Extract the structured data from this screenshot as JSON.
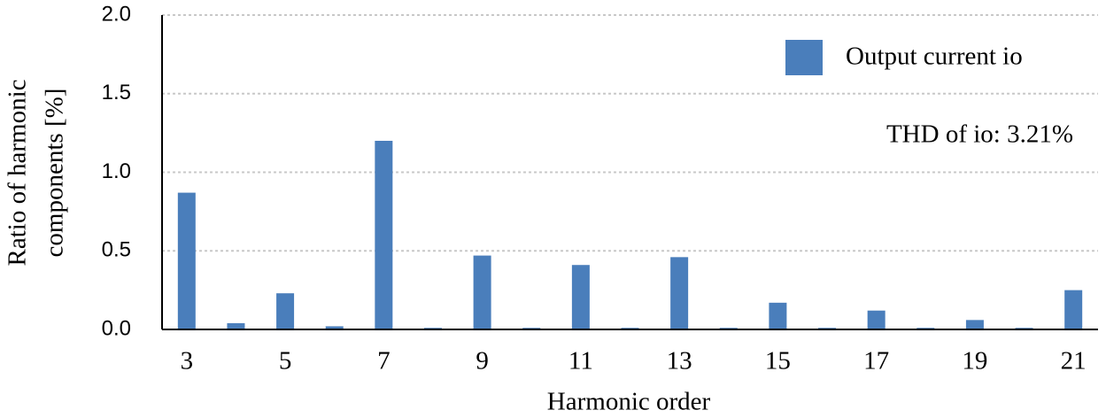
{
  "chart_data": {
    "type": "bar",
    "xlabel": "Harmonic order",
    "ylabel": [
      "Ratio of harmonic",
      "components [%]"
    ],
    "categories": [
      "3",
      null,
      "5",
      null,
      "7",
      null,
      "9",
      null,
      "11",
      null,
      "13",
      null,
      "15",
      null,
      "17",
      null,
      "19",
      null,
      "21"
    ],
    "series": [
      {
        "name": "Output current io",
        "color": "#4a7ebb",
        "values": [
          0.87,
          0.04,
          0.23,
          0.02,
          1.2,
          0.01,
          0.47,
          0.01,
          0.41,
          0.01,
          0.46,
          0.01,
          0.17,
          0.01,
          0.12,
          0.01,
          0.06,
          0.01,
          0.25
        ]
      }
    ],
    "annotation": "THD of io: 3.21%",
    "ylim": [
      0,
      2
    ],
    "yticks": [
      {
        "value": 0,
        "label": "0.0"
      },
      {
        "value": 0.5,
        "label": "0.5"
      },
      {
        "value": 1,
        "label": "1.0"
      },
      {
        "value": 1.5,
        "label": "1.5"
      },
      {
        "value": 2,
        "label": "2.0"
      }
    ],
    "grid": true,
    "legend": "upper right"
  }
}
